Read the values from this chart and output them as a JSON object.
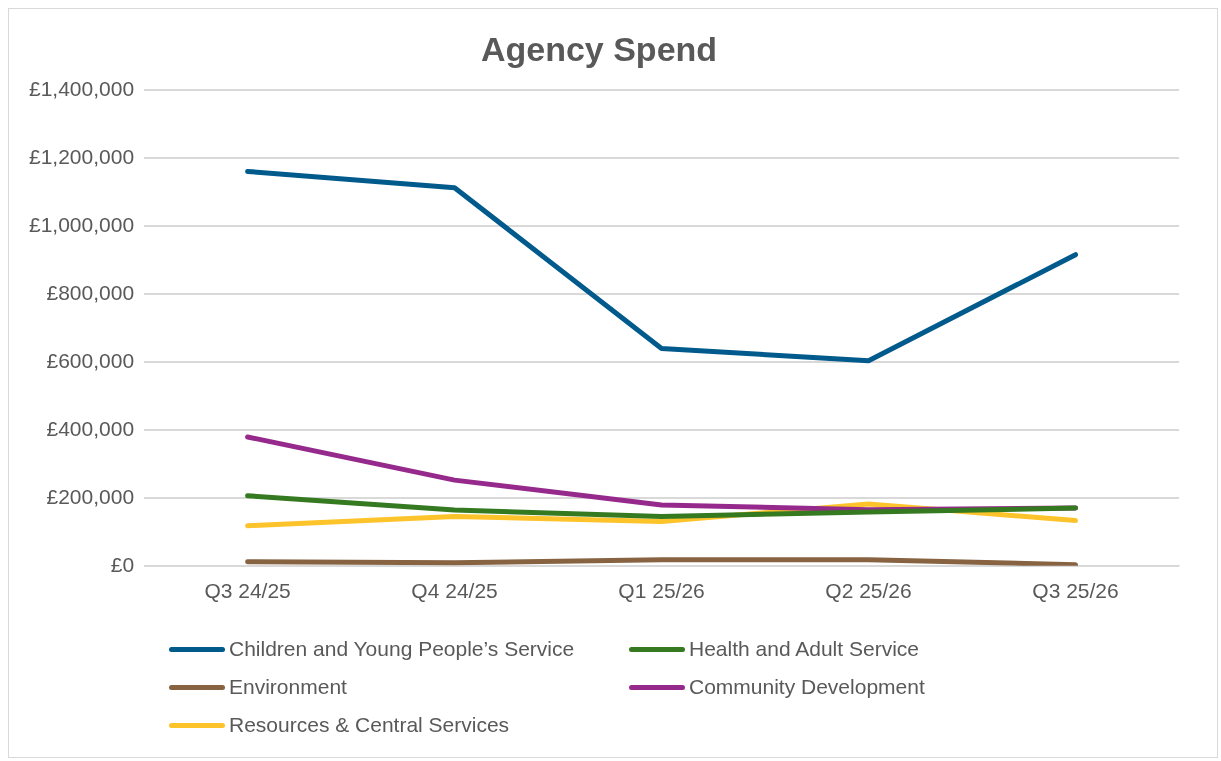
{
  "chart_data": {
    "type": "line",
    "title": "Agency Spend",
    "categories": [
      "Q3 24/25",
      "Q4 24/25",
      "Q1 25/26",
      "Q2 25/26",
      "Q3 25/26"
    ],
    "series": [
      {
        "name": "Children and Young People’s Service",
        "color": "#005a8c",
        "values": [
          1160000,
          1112000,
          639000,
          603000,
          915000
        ]
      },
      {
        "name": "Health and Adult Service",
        "color": "#357a20",
        "values": [
          206000,
          164000,
          145000,
          158000,
          170000
        ]
      },
      {
        "name": "Environment",
        "color": "#876342",
        "values": [
          12000,
          9000,
          18000,
          18000,
          3000
        ]
      },
      {
        "name": "Community Development",
        "color": "#962a8c",
        "values": [
          379000,
          252000,
          179000,
          165000,
          170000
        ]
      },
      {
        "name": "Resources & Central Services",
        "color": "#fcc32b",
        "values": [
          118000,
          145000,
          130000,
          182000,
          133000
        ]
      }
    ],
    "ylim": [
      0,
      1400000
    ],
    "yticks": [
      {
        "value": 0,
        "label": "£0"
      },
      {
        "value": 200000,
        "label": "£200,000"
      },
      {
        "value": 400000,
        "label": "£400,000"
      },
      {
        "value": 600000,
        "label": "£600,000"
      },
      {
        "value": 800000,
        "label": "£800,000"
      },
      {
        "value": 1000000,
        "label": "£1,000,000"
      },
      {
        "value": 1200000,
        "label": "£1,200,000"
      },
      {
        "value": 1400000,
        "label": "£1,400,000"
      }
    ],
    "grid": "y",
    "legend": "bottom",
    "marker": "none",
    "line_style": "solid"
  }
}
